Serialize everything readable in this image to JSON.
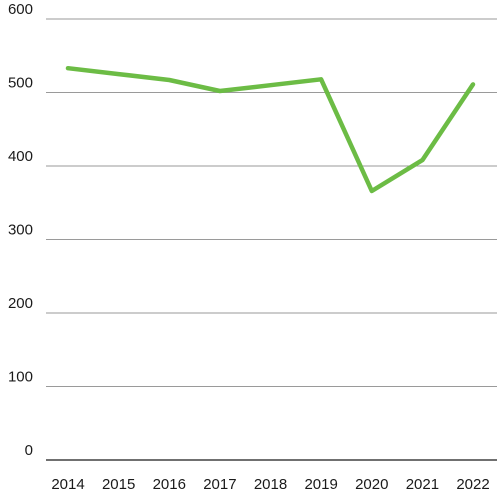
{
  "chart_data": {
    "type": "line",
    "title": "",
    "xlabel": "",
    "ylabel": "",
    "x": [
      "2014",
      "2015",
      "2016",
      "2017",
      "2018",
      "2019",
      "2020",
      "2021",
      "2022"
    ],
    "series": [
      {
        "values": [
          533,
          525,
          517,
          502,
          510,
          518,
          366,
          408,
          511
        ],
        "color": "#6cbc45"
      }
    ],
    "yticks": [
      "0",
      "100",
      "200",
      "300",
      "400",
      "500",
      "600"
    ],
    "ylim": [
      0,
      600
    ],
    "grid": true,
    "legend": "none"
  }
}
